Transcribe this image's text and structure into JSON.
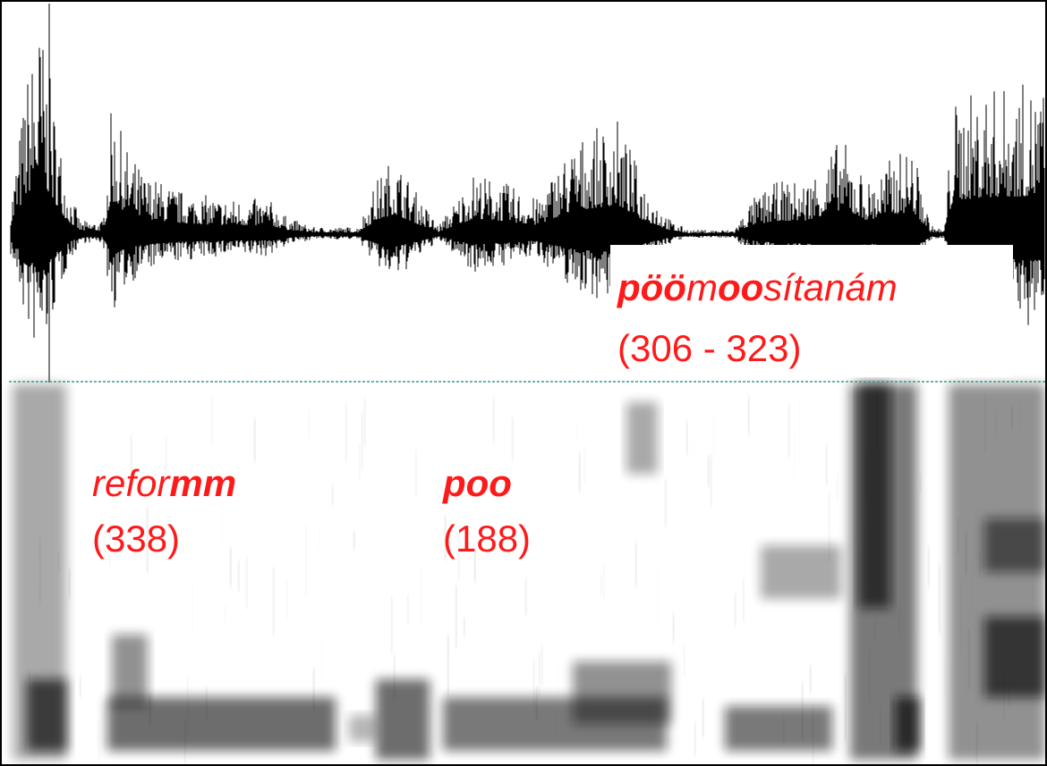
{
  "annotations": [
    {
      "word": [
        {
          "text": "pöö",
          "bold": true
        },
        {
          "text": "m",
          "bold": false
        },
        {
          "text": "oo",
          "bold": true
        },
        {
          "text": "sítanám",
          "bold": false
        }
      ],
      "note": "(306 - 323)"
    },
    {
      "word": [
        {
          "text": "refor",
          "bold": false
        },
        {
          "text": "mm",
          "bold": true
        }
      ],
      "note": "(338)"
    },
    {
      "word": [
        {
          "text": "poo",
          "bold": true
        }
      ],
      "note": "(188)"
    }
  ]
}
